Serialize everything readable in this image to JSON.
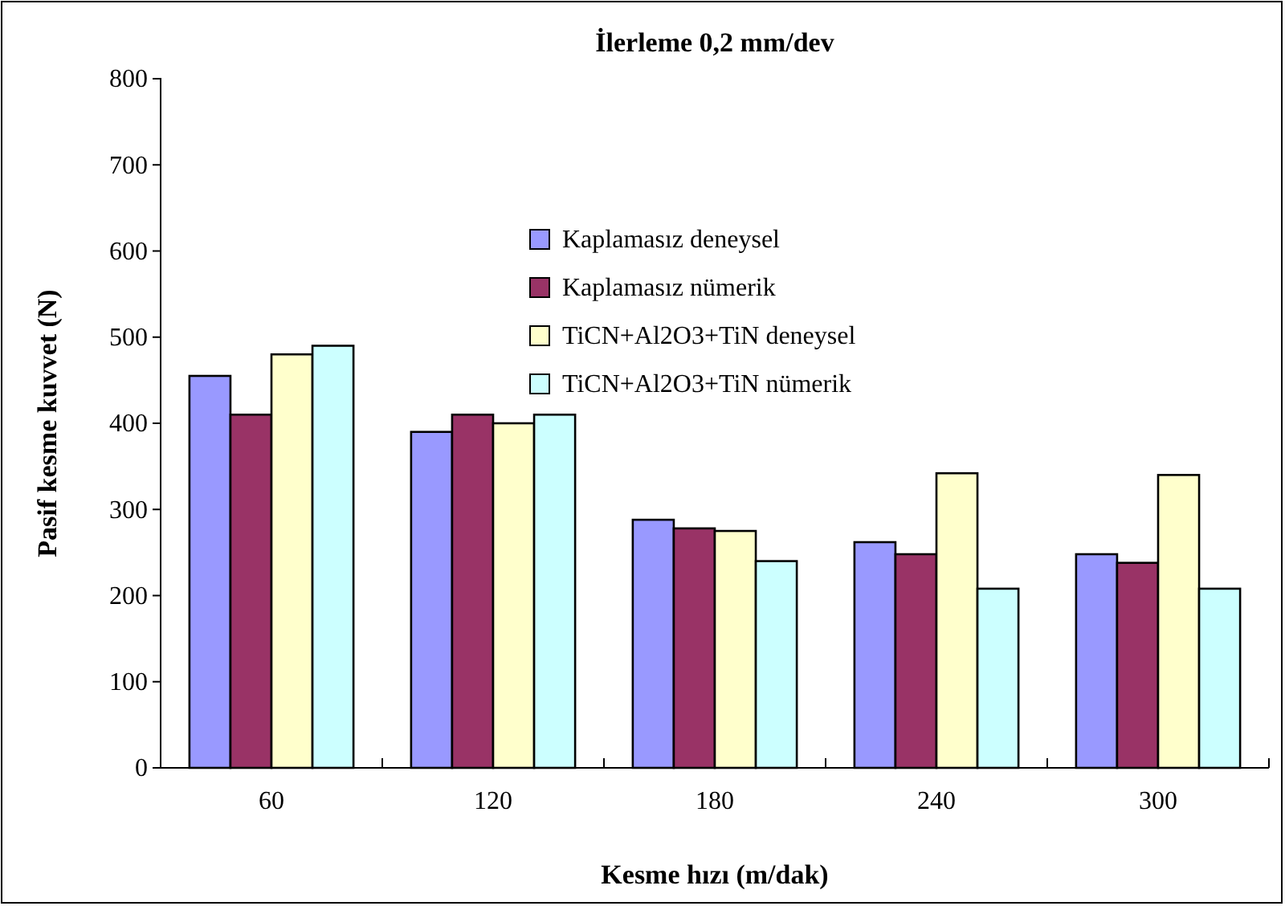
{
  "chart_data": {
    "type": "bar",
    "title": "İlerleme  0,2 mm/dev",
    "xlabel": "Kesme hızı (m/dak)",
    "ylabel": "Pasif  kesme kuvvet (N)",
    "categories": [
      "60",
      "120",
      "180",
      "240",
      "300"
    ],
    "series": [
      {
        "name": "Kaplamasız deneysel",
        "color": "#9999ff",
        "values": [
          455,
          390,
          288,
          262,
          248
        ]
      },
      {
        "name": "Kaplamasız nümerik",
        "color": "#993366",
        "values": [
          410,
          410,
          278,
          248,
          238
        ]
      },
      {
        "name": "TiCN+Al2O3+TiN deneysel",
        "color": "#ffffcc",
        "values": [
          480,
          400,
          275,
          342,
          340
        ]
      },
      {
        "name": "TiCN+Al2O3+TiN nümerik",
        "color": "#ccffff",
        "values": [
          490,
          410,
          240,
          208,
          208
        ]
      }
    ],
    "ylim": [
      0,
      800
    ],
    "yticks": [
      0,
      100,
      200,
      300,
      400,
      500,
      600,
      700,
      800
    ],
    "grid": false,
    "legend": "top right"
  }
}
